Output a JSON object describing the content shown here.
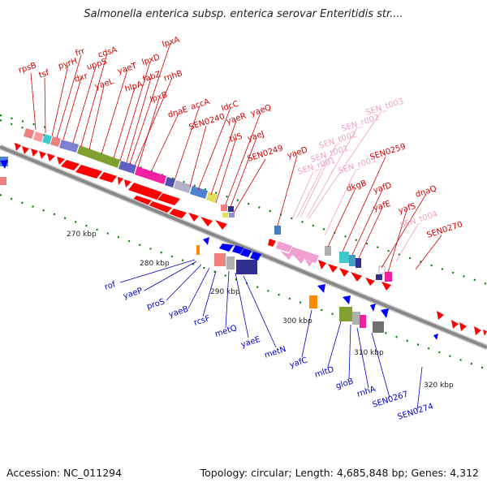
{
  "title": "Salmonella enterica subsp. enterica serovar Enteritidis str....",
  "footer": {
    "accession": "Accession: NC_011294",
    "summary": "Topology: circular; Length: 4,685,848 bp; Genes: 4,312"
  },
  "colors": {
    "forward_label": "#d00000",
    "reverse_label": "#0000c8",
    "rna_label": "#f0a0c8",
    "forward_arrow": "#ff0000",
    "reverse_arrow": "#0000ff",
    "backbone": "#888888",
    "gc_tick": "#008000"
  },
  "scale_labels": [
    "270 kbp",
    "280 kbp",
    "290 kbp",
    "300 kbp",
    "310 kbp",
    "320 kbp"
  ],
  "forward_labels": [
    "rpsB",
    "tsf",
    "pyrH",
    "frr",
    "dxr",
    "uppS",
    "cdsA",
    "yaeL",
    "yaeT",
    "hlpA",
    "lpxD",
    "fabZ",
    "lpxA",
    "rnhB",
    "lpxB",
    "dnaE",
    "accA",
    "SEN0240",
    "ldcC",
    "yaeR",
    "tilS",
    "yaeQ",
    "yaeJ",
    "SEN0249",
    "yaeD",
    "dkgB",
    "SEN0259",
    "yafD",
    "yafE",
    "dnaQ",
    "yafS",
    "SEN0270"
  ],
  "rna_labels": [
    "SEN_t003",
    "SEN_r002",
    "SEN_t002",
    "SEN_t001",
    "SEN_r001",
    "SEN_r003",
    "SEN_t004"
  ],
  "reverse_labels": [
    "rof",
    "yaeP",
    "proS",
    "yaeB",
    "rcsF",
    "metQ",
    "yaeE",
    "metN",
    "yafC",
    "mltD",
    "gloB",
    "rnhA",
    "SEN0267",
    "SEN0274"
  ]
}
